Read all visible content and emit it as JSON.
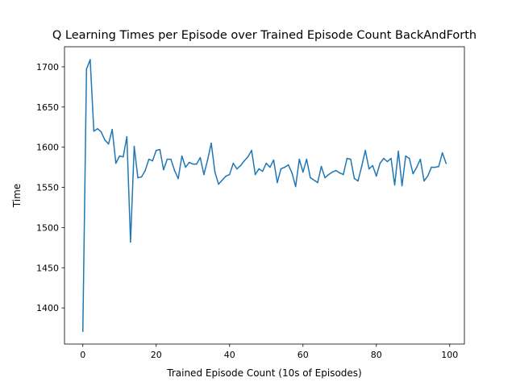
{
  "chart_data": {
    "type": "line",
    "title": "Q Learning Times per Episode over Trained Episode Count BackAndForth",
    "xlabel": "Trained Episode Count (10s of Episodes)",
    "ylabel": "Time",
    "xlim": [
      -5,
      104
    ],
    "ylim": [
      1355,
      1725
    ],
    "xticks": [
      0,
      20,
      40,
      60,
      80,
      100
    ],
    "yticks": [
      1400,
      1450,
      1500,
      1550,
      1600,
      1650,
      1700
    ],
    "grid": false,
    "line_color": "#1f77b4",
    "series": [
      {
        "x": [
          0,
          1,
          2,
          3,
          4,
          5,
          6,
          7,
          8,
          9,
          10,
          11,
          12,
          13,
          14,
          15,
          16,
          17,
          18,
          19,
          20,
          21,
          22,
          23,
          24,
          25,
          26,
          27,
          28,
          29,
          30,
          31,
          32,
          33,
          34,
          35,
          36,
          37,
          38,
          39,
          40,
          41,
          42,
          43,
          44,
          45,
          46,
          47,
          48,
          49,
          50,
          51,
          52,
          53,
          54,
          55,
          56,
          57,
          58,
          59,
          60,
          61,
          62,
          63,
          64,
          65,
          66,
          67,
          68,
          69,
          70,
          71,
          72,
          73,
          74,
          75,
          76,
          77,
          78,
          79,
          80,
          81,
          82,
          83,
          84,
          85,
          86,
          87,
          88,
          89,
          90,
          91,
          92,
          93,
          94,
          95,
          96,
          97,
          98,
          99
        ],
        "values": [
          1371,
          1697,
          1709,
          1620,
          1623,
          1619,
          1609,
          1604,
          1622,
          1580,
          1589,
          1588,
          1613,
          1482,
          1601,
          1562,
          1563,
          1571,
          1585,
          1583,
          1596,
          1597,
          1572,
          1585,
          1585,
          1571,
          1561,
          1589,
          1575,
          1581,
          1579,
          1579,
          1587,
          1566,
          1584,
          1605,
          1569,
          1554,
          1559,
          1564,
          1566,
          1580,
          1573,
          1577,
          1583,
          1588,
          1596,
          1566,
          1573,
          1570,
          1580,
          1575,
          1584,
          1556,
          1573,
          1575,
          1578,
          1568,
          1551,
          1585,
          1569,
          1585,
          1562,
          1559,
          1556,
          1576,
          1562,
          1566,
          1569,
          1571,
          1568,
          1566,
          1586,
          1585,
          1561,
          1558,
          1576,
          1596,
          1573,
          1577,
          1564,
          1580,
          1586,
          1582,
          1586,
          1553,
          1595,
          1552,
          1589,
          1586,
          1567,
          1575,
          1585,
          1558,
          1564,
          1575,
          1575,
          1576,
          1593,
          1580
        ]
      }
    ]
  }
}
